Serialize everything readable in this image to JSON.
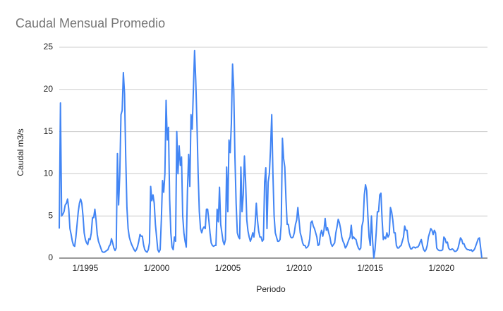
{
  "chart_data": {
    "type": "line",
    "title": "Caudal Mensual Promedio",
    "x_label": "Periodo",
    "y_label": "Caudal m3/s",
    "x": [
      "3/1993",
      "4/1993",
      "5/1993",
      "6/1993",
      "7/1993",
      "8/1993",
      "9/1993",
      "10/1993",
      "11/1993",
      "12/1993",
      "1/1994",
      "2/1994",
      "3/1994",
      "4/1994",
      "5/1994",
      "6/1994",
      "7/1994",
      "8/1994",
      "9/1994",
      "10/1994",
      "11/1994",
      "12/1994",
      "1/1995",
      "2/1995",
      "3/1995",
      "4/1995",
      "5/1995",
      "6/1995",
      "7/1995",
      "8/1995",
      "9/1995",
      "10/1995",
      "11/1995",
      "12/1995",
      "1/1996",
      "2/1996",
      "3/1996",
      "4/1996",
      "5/1996",
      "6/1996",
      "7/1996",
      "8/1996",
      "9/1996",
      "10/1996",
      "11/1996",
      "12/1996",
      "1/1997",
      "2/1997",
      "3/1997",
      "4/1997",
      "5/1997",
      "6/1997",
      "7/1997",
      "8/1997",
      "9/1997",
      "10/1997",
      "11/1997",
      "12/1997",
      "1/1998",
      "2/1998",
      "3/1998",
      "4/1998",
      "5/1998",
      "6/1998",
      "7/1998",
      "8/1998",
      "9/1998",
      "10/1998",
      "11/1998",
      "12/1998",
      "1/1999",
      "2/1999",
      "3/1999",
      "4/1999",
      "5/1999",
      "6/1999",
      "7/1999",
      "8/1999",
      "9/1999",
      "10/1999",
      "11/1999",
      "12/1999",
      "1/2000",
      "2/2000",
      "3/2000",
      "4/2000",
      "5/2000",
      "6/2000",
      "7/2000",
      "8/2000",
      "9/2000",
      "10/2000",
      "11/2000",
      "12/2000",
      "1/2001",
      "2/2001",
      "3/2001",
      "4/2001",
      "5/2001",
      "6/2001",
      "7/2001",
      "8/2001",
      "9/2001",
      "10/2001",
      "11/2001",
      "12/2001",
      "1/2002",
      "2/2002",
      "3/2002",
      "4/2002",
      "5/2002",
      "6/2002",
      "7/2002",
      "8/2002",
      "9/2002",
      "10/2002",
      "11/2002",
      "12/2002",
      "1/2003",
      "2/2003",
      "3/2003",
      "4/2003",
      "5/2003",
      "6/2003",
      "7/2003",
      "8/2003",
      "9/2003",
      "10/2003",
      "11/2003",
      "12/2003",
      "1/2004",
      "2/2004",
      "3/2004",
      "4/2004",
      "5/2004",
      "6/2004",
      "7/2004",
      "8/2004",
      "9/2004",
      "10/2004",
      "11/2004",
      "12/2004",
      "1/2005",
      "2/2005",
      "3/2005",
      "4/2005",
      "5/2005",
      "6/2005",
      "7/2005",
      "8/2005",
      "9/2005",
      "10/2005",
      "11/2005",
      "12/2005",
      "1/2006",
      "2/2006",
      "3/2006",
      "4/2006",
      "5/2006",
      "6/2006",
      "7/2006",
      "8/2006",
      "9/2006",
      "10/2006",
      "11/2006",
      "12/2006",
      "1/2007",
      "2/2007",
      "3/2007",
      "4/2007",
      "5/2007",
      "6/2007",
      "7/2007",
      "8/2007",
      "9/2007",
      "10/2007",
      "11/2007",
      "12/2007",
      "1/2008",
      "2/2008",
      "3/2008",
      "4/2008",
      "5/2008",
      "6/2008",
      "7/2008",
      "8/2008",
      "9/2008",
      "10/2008",
      "11/2008",
      "12/2008",
      "1/2009",
      "2/2009",
      "3/2009",
      "4/2009",
      "5/2009",
      "6/2009",
      "7/2009",
      "8/2009",
      "9/2009",
      "10/2009",
      "11/2009",
      "12/2009",
      "1/2010",
      "2/2010",
      "3/2010",
      "4/2010",
      "5/2010",
      "6/2010",
      "7/2010",
      "8/2010",
      "9/2010",
      "10/2010",
      "11/2010",
      "12/2010",
      "1/2011",
      "2/2011",
      "3/2011",
      "4/2011",
      "5/2011",
      "6/2011",
      "7/2011",
      "8/2011",
      "9/2011",
      "10/2011",
      "11/2011",
      "12/2011",
      "1/2012",
      "2/2012",
      "3/2012",
      "4/2012",
      "5/2012",
      "6/2012",
      "7/2012",
      "8/2012",
      "9/2012",
      "10/2012",
      "11/2012",
      "12/2012",
      "1/2013",
      "2/2013",
      "3/2013",
      "4/2013",
      "5/2013",
      "6/2013",
      "7/2013",
      "8/2013",
      "9/2013",
      "10/2013",
      "11/2013",
      "12/2013",
      "1/2014",
      "2/2014",
      "3/2014",
      "4/2014",
      "5/2014",
      "6/2014",
      "7/2014",
      "8/2014",
      "9/2014",
      "10/2014",
      "11/2014",
      "12/2014",
      "1/2015",
      "2/2015",
      "3/2015",
      "4/2015",
      "5/2015",
      "6/2015",
      "7/2015",
      "8/2015",
      "9/2015",
      "10/2015",
      "11/2015",
      "12/2015",
      "1/2016",
      "2/2016",
      "3/2016",
      "4/2016",
      "5/2016",
      "6/2016",
      "7/2016",
      "8/2016",
      "9/2016",
      "10/2016",
      "11/2016",
      "12/2016",
      "1/2017",
      "2/2017",
      "3/2017",
      "4/2017",
      "5/2017",
      "6/2017",
      "7/2017",
      "8/2017",
      "9/2017",
      "10/2017",
      "11/2017",
      "12/2017",
      "1/2018",
      "2/2018",
      "3/2018",
      "4/2018",
      "5/2018",
      "6/2018",
      "7/2018",
      "8/2018",
      "9/2018",
      "10/2018",
      "11/2018",
      "12/2018",
      "1/2019",
      "2/2019",
      "3/2019",
      "4/2019",
      "5/2019",
      "6/2019",
      "7/2019",
      "8/2019",
      "9/2019",
      "10/2019",
      "11/2019",
      "12/2019",
      "1/2020",
      "2/2020",
      "3/2020",
      "4/2020",
      "5/2020",
      "6/2020",
      "7/2020",
      "8/2020",
      "9/2020",
      "10/2020",
      "11/2020",
      "12/2020",
      "1/2021",
      "2/2021",
      "3/2021",
      "4/2021",
      "5/2021",
      "6/2021",
      "7/2021",
      "8/2021",
      "9/2021",
      "10/2021",
      "11/2021",
      "12/2021",
      "1/2022",
      "2/2022",
      "3/2022",
      "4/2022",
      "5/2022",
      "6/2022",
      "7/2022",
      "8/2022",
      "9/2022",
      "10/2022",
      "11/2022"
    ],
    "series": [
      {
        "name": "Caudal",
        "color": "#4285f4",
        "values": [
          3.5,
          18.4,
          5,
          5.2,
          5.5,
          6.3,
          6.5,
          7,
          5.8,
          3.5,
          2.8,
          2,
          1.5,
          1.4,
          2.5,
          4,
          5.5,
          6.5,
          7,
          6.5,
          5,
          3,
          2.2,
          1.8,
          1.6,
          2.3,
          2.2,
          3,
          4.8,
          4.8,
          5.8,
          4.5,
          2.8,
          2,
          1.6,
          1.2,
          0.8,
          0.7,
          0.7,
          0.8,
          0.9,
          1,
          1.4,
          1.6,
          2.3,
          1.8,
          1.2,
          0.9,
          1.2,
          12.4,
          6.3,
          10,
          17,
          17.5,
          22,
          19.5,
          12,
          6,
          3.5,
          2.5,
          2,
          1.6,
          1.3,
          1,
          0.8,
          1,
          1.4,
          2,
          2.8,
          2.6,
          2.6,
          1.6,
          1,
          0.8,
          0.7,
          1,
          1.8,
          8.5,
          6.8,
          7.5,
          6.5,
          4,
          2.5,
          1,
          0.7,
          1,
          4.5,
          9.2,
          7.8,
          10,
          18.7,
          14,
          15.5,
          7,
          3,
          1.3,
          1,
          2.5,
          2,
          15,
          10,
          13.3,
          11,
          12,
          5,
          3,
          2,
          1.3,
          8,
          12.3,
          8.5,
          17,
          15.3,
          20,
          24.6,
          21,
          16,
          10,
          5.5,
          3.5,
          3,
          3.5,
          3.7,
          3.5,
          5.8,
          5.8,
          4.5,
          3,
          1.8,
          1.5,
          1.4,
          1.5,
          1.5,
          5.8,
          4.3,
          8.4,
          4,
          3,
          2,
          1.6,
          2.2,
          10.8,
          5.5,
          14,
          12.5,
          16,
          23,
          20,
          12,
          6.5,
          3,
          2.5,
          2.3,
          10.8,
          5.5,
          7.5,
          12.1,
          9,
          4.5,
          3.2,
          2.5,
          2,
          2.4,
          3,
          2.5,
          4,
          6.5,
          4.5,
          3.2,
          2.5,
          2.5,
          2,
          2.2,
          9,
          10.7,
          3.5,
          9,
          10,
          13,
          17,
          10,
          5,
          3,
          2.5,
          2,
          2,
          2.2,
          4,
          14.2,
          11.8,
          10.8,
          7,
          4,
          4,
          3,
          2.5,
          2.4,
          2.5,
          3,
          4,
          4.5,
          6,
          4.5,
          3,
          2.5,
          1.8,
          1.5,
          1.5,
          1.2,
          1.3,
          1.5,
          2.3,
          4.2,
          4.4,
          3.8,
          3.5,
          3,
          2.5,
          1.5,
          1.6,
          2.8,
          3.3,
          2.6,
          3.3,
          4.7,
          3.3,
          3.6,
          3,
          2.5,
          1.7,
          1.4,
          1.6,
          1.8,
          3,
          3.7,
          4.6,
          4.2,
          3.5,
          2.5,
          2,
          1.7,
          1.2,
          1.4,
          1.8,
          2.2,
          2.5,
          3.9,
          2.3,
          2.5,
          2.3,
          2.2,
          1.6,
          1.2,
          1,
          1.2,
          3.8,
          4.4,
          7.5,
          8.7,
          8,
          5,
          2.5,
          1.5,
          5,
          2,
          0,
          1,
          3,
          5.5,
          5.5,
          7.5,
          7.7,
          4.5,
          2.2,
          2.5,
          2.3,
          3,
          2.5,
          2.8,
          6,
          5.5,
          4.5,
          3,
          3,
          1.5,
          1.2,
          1.2,
          1.4,
          1.5,
          2,
          2.5,
          3.8,
          3.3,
          3.3,
          2,
          1.5,
          1.1,
          1.1,
          1.3,
          1.3,
          1.2,
          1.3,
          1.3,
          1.5,
          1.9,
          2.2,
          1.5,
          1,
          0.8,
          1,
          1.5,
          2.5,
          3,
          3.5,
          3.3,
          2.8,
          3.3,
          3,
          1.2,
          1,
          0.9,
          0.9,
          0.9,
          1,
          2.5,
          2.3,
          1.8,
          1.9,
          1.2,
          1,
          1,
          1.1,
          1,
          0.8,
          0.8,
          0.9,
          1.2,
          1.8,
          2.4,
          2.2,
          1.7,
          1.7,
          1.3,
          1.1,
          1,
          1,
          0.9,
          1,
          0.8,
          0.9,
          1.1,
          1.5,
          1.9,
          2.3,
          2.4,
          1.2,
          0
        ]
      }
    ],
    "xticks": [
      "1/1995",
      "1/2000",
      "1/2005",
      "1/2010",
      "1/2015",
      "1/2020"
    ],
    "ylim": [
      0,
      25
    ],
    "yticks": [
      0,
      5,
      10,
      15,
      20,
      25
    ],
    "grid": true
  }
}
